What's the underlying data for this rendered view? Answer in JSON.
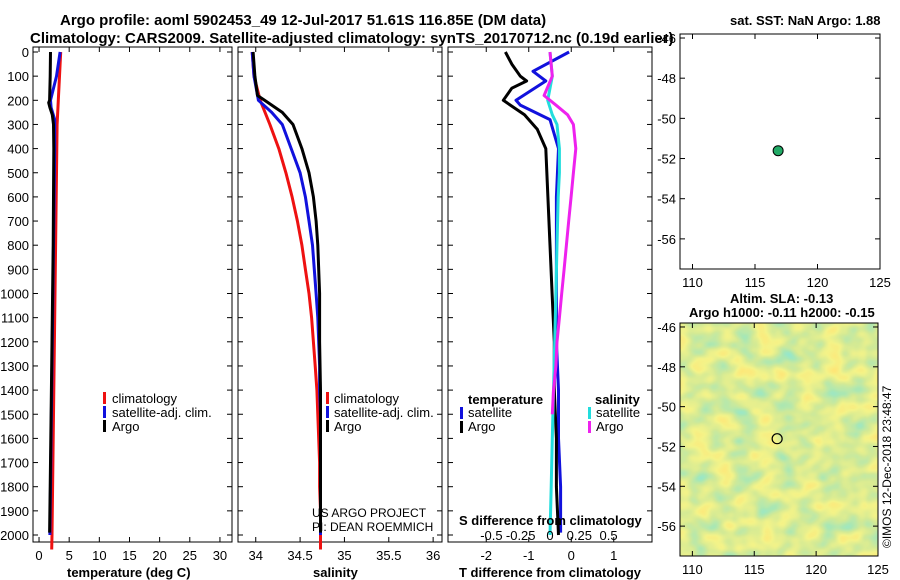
{
  "title": {
    "line1": "Argo profile: aoml 5902453_49 12-Jul-2017 51.61S 116.85E (DM data)",
    "line2": "Climatology: CARS2009. Satellite-adjusted climatology: synTS_20170712.nc (0.19d earlier)"
  },
  "colors": {
    "red": "#ee1111",
    "blue": "#1111dd",
    "black": "#000000",
    "cyan": "#22dddd",
    "magenta": "#ee22ee",
    "dot": "#22aa66"
  },
  "depth_ticks": [
    0,
    100,
    200,
    300,
    400,
    500,
    600,
    700,
    800,
    900,
    1000,
    1100,
    1200,
    1300,
    1400,
    1500,
    1600,
    1700,
    1800,
    1900,
    2000
  ],
  "chart_data": [
    {
      "id": "temperature",
      "type": "line",
      "xlabel": "temperature (deg C)",
      "ylabel": "",
      "xlim": [
        -1,
        32
      ],
      "ylim": [
        2060,
        0
      ],
      "xticks": [
        0,
        5,
        10,
        15,
        20,
        25,
        30
      ],
      "legend": [
        "climatology",
        "satellite-adj. clim.",
        "Argo"
      ],
      "series": [
        {
          "name": "climatology",
          "color": "red",
          "points": [
            [
              3.6,
              0
            ],
            [
              3.4,
              100
            ],
            [
              3.2,
              200
            ],
            [
              3.0,
              300
            ],
            [
              2.95,
              400
            ],
            [
              2.85,
              600
            ],
            [
              2.75,
              800
            ],
            [
              2.65,
              1000
            ],
            [
              2.55,
              1200
            ],
            [
              2.45,
              1400
            ],
            [
              2.35,
              1600
            ],
            [
              2.25,
              1800
            ],
            [
              2.15,
              2000
            ],
            [
              2.1,
              2060
            ]
          ]
        },
        {
          "name": "satellite-adj. clim.",
          "color": "blue",
          "points": [
            [
              3.5,
              0
            ],
            [
              2.9,
              100
            ],
            [
              1.9,
              200
            ],
            [
              2.0,
              230
            ],
            [
              2.6,
              280
            ],
            [
              2.6,
              400
            ],
            [
              2.5,
              600
            ],
            [
              2.4,
              800
            ],
            [
              2.3,
              1000
            ],
            [
              2.2,
              1200
            ],
            [
              2.1,
              1400
            ],
            [
              2.0,
              1600
            ],
            [
              1.9,
              1800
            ],
            [
              1.8,
              2000
            ]
          ]
        },
        {
          "name": "Argo",
          "color": "black",
          "points": [
            [
              1.9,
              0
            ],
            [
              1.85,
              100
            ],
            [
              1.75,
              200
            ],
            [
              1.6,
              210
            ],
            [
              1.8,
              230
            ],
            [
              2.2,
              260
            ],
            [
              2.4,
              300
            ],
            [
              2.45,
              400
            ],
            [
              2.4,
              600
            ],
            [
              2.35,
              800
            ],
            [
              2.25,
              1000
            ],
            [
              2.15,
              1200
            ],
            [
              2.05,
              1400
            ],
            [
              1.95,
              1600
            ],
            [
              1.85,
              1800
            ],
            [
              1.75,
              1990
            ]
          ]
        }
      ]
    },
    {
      "id": "salinity",
      "type": "line",
      "xlabel": "salinity",
      "ylabel": "",
      "xlim": [
        33.8,
        36.1
      ],
      "ylim": [
        2060,
        0
      ],
      "xticks": [
        34,
        34.5,
        35,
        35.5,
        36
      ],
      "xticklabels": [
        "34",
        "34.5",
        "35",
        "35.5",
        "36"
      ],
      "legend": [
        "climatology",
        "satellite-adj. clim.",
        "Argo"
      ],
      "annotations": [
        "US ARGO PROJECT",
        "PI: DEAN ROEMMICH"
      ],
      "series": [
        {
          "name": "climatology",
          "color": "red",
          "points": [
            [
              33.96,
              0
            ],
            [
              33.98,
              100
            ],
            [
              34.05,
              200
            ],
            [
              34.16,
              300
            ],
            [
              34.26,
              400
            ],
            [
              34.34,
              500
            ],
            [
              34.41,
              600
            ],
            [
              34.47,
              700
            ],
            [
              34.52,
              800
            ],
            [
              34.56,
              900
            ],
            [
              34.6,
              1000
            ],
            [
              34.63,
              1100
            ],
            [
              34.65,
              1200
            ],
            [
              34.67,
              1300
            ],
            [
              34.69,
              1400
            ],
            [
              34.7,
              1500
            ],
            [
              34.71,
              1600
            ],
            [
              34.72,
              1700
            ],
            [
              34.72,
              1800
            ],
            [
              34.73,
              1900
            ],
            [
              34.73,
              2000
            ],
            [
              34.73,
              2060
            ]
          ]
        },
        {
          "name": "satellite-adj. clim.",
          "color": "blue",
          "points": [
            [
              33.96,
              0
            ],
            [
              33.98,
              100
            ],
            [
              34.03,
              200
            ],
            [
              34.18,
              250
            ],
            [
              34.3,
              300
            ],
            [
              34.4,
              400
            ],
            [
              34.5,
              500
            ],
            [
              34.56,
              600
            ],
            [
              34.6,
              700
            ],
            [
              34.64,
              800
            ],
            [
              34.66,
              900
            ],
            [
              34.68,
              1000
            ],
            [
              34.7,
              1100
            ],
            [
              34.71,
              1200
            ],
            [
              34.72,
              1300
            ],
            [
              34.72,
              1400
            ],
            [
              34.73,
              1500
            ],
            [
              34.73,
              1600
            ],
            [
              34.73,
              1700
            ],
            [
              34.73,
              1800
            ],
            [
              34.73,
              1900
            ],
            [
              34.73,
              2000
            ]
          ]
        },
        {
          "name": "Argo",
          "color": "black",
          "points": [
            [
              33.97,
              0
            ],
            [
              33.99,
              100
            ],
            [
              34.02,
              180
            ],
            [
              34.1,
              200
            ],
            [
              34.3,
              250
            ],
            [
              34.42,
              300
            ],
            [
              34.52,
              400
            ],
            [
              34.6,
              500
            ],
            [
              34.65,
              600
            ],
            [
              34.68,
              700
            ],
            [
              34.7,
              800
            ],
            [
              34.71,
              900
            ],
            [
              34.72,
              1000
            ],
            [
              34.72,
              1200
            ],
            [
              34.73,
              1400
            ],
            [
              34.73,
              1600
            ],
            [
              34.73,
              1800
            ],
            [
              34.73,
              1990
            ]
          ]
        }
      ]
    },
    {
      "id": "differences",
      "type": "line",
      "xlabel": "T difference from climatology",
      "xlabel_top": "S difference from climatology",
      "xlim": [
        -2.9,
        1.9
      ],
      "ylim": [
        2060,
        0
      ],
      "xticks": [
        -2,
        -1,
        0,
        1
      ],
      "xticklabels": [
        "-2",
        "-1",
        "0",
        "1"
      ],
      "sticks": [
        -0.5,
        -0.25,
        0,
        0.25,
        0.5
      ],
      "sticklabels": [
        "-0.5",
        "-0.25",
        "0",
        "0.25",
        "0.5"
      ],
      "legend_temperature_title": "temperature",
      "legend_salinity_title": "salinity",
      "legend_temperature": [
        "satellite",
        "Argo"
      ],
      "legend_salinity": [
        "satellite",
        "Argo"
      ],
      "series": [
        {
          "name": "T satellite",
          "color": "blue",
          "points": [
            [
              -0.05,
              0
            ],
            [
              -0.9,
              80
            ],
            [
              -0.6,
              120
            ],
            [
              -1.3,
              200
            ],
            [
              -1.2,
              220
            ],
            [
              -0.5,
              280
            ],
            [
              -0.3,
              400
            ],
            [
              -0.35,
              600
            ],
            [
              -0.35,
              800
            ],
            [
              -0.35,
              1000
            ],
            [
              -0.35,
              1200
            ],
            [
              -0.3,
              1400
            ],
            [
              -0.3,
              1600
            ],
            [
              -0.25,
              1800
            ],
            [
              -0.25,
              1990
            ]
          ]
        },
        {
          "name": "T Argo",
          "color": "black",
          "points": [
            [
              -1.55,
              0
            ],
            [
              -1.4,
              50
            ],
            [
              -1.2,
              100
            ],
            [
              -1.05,
              120
            ],
            [
              -1.4,
              150
            ],
            [
              -1.6,
              200
            ],
            [
              -1.1,
              260
            ],
            [
              -0.8,
              320
            ],
            [
              -0.6,
              400
            ],
            [
              -0.55,
              600
            ],
            [
              -0.5,
              800
            ],
            [
              -0.45,
              1000
            ],
            [
              -0.4,
              1200
            ],
            [
              -0.4,
              1400
            ],
            [
              -0.35,
              1600
            ],
            [
              -0.35,
              1800
            ],
            [
              -0.3,
              2000
            ]
          ]
        },
        {
          "name": "S satellite",
          "color": "cyan",
          "points": [
            [
              0,
              0
            ],
            [
              0.02,
              100
            ],
            [
              -0.02,
              200
            ],
            [
              0.02,
              260
            ],
            [
              0.06,
              300
            ],
            [
              0.08,
              400
            ],
            [
              0.08,
              500
            ],
            [
              0.07,
              600
            ],
            [
              0.06,
              800
            ],
            [
              0.05,
              1000
            ],
            [
              0.04,
              1200
            ],
            [
              0.03,
              1400
            ],
            [
              0.02,
              1600
            ],
            [
              0.01,
              1800
            ],
            [
              0,
              2000
            ]
          ]
        },
        {
          "name": "S Argo",
          "color": "magenta",
          "points": [
            [
              0,
              0
            ],
            [
              0.02,
              100
            ],
            [
              -0.05,
              180
            ],
            [
              0.05,
              220
            ],
            [
              0.15,
              260
            ],
            [
              0.2,
              300
            ],
            [
              0.22,
              400
            ],
            [
              0.2,
              500
            ],
            [
              0.18,
              600
            ],
            [
              0.16,
              700
            ],
            [
              0.14,
              800
            ],
            [
              0.12,
              900
            ],
            [
              0.1,
              1000
            ],
            [
              0.08,
              1100
            ],
            [
              0.06,
              1200
            ],
            [
              0.05,
              1300
            ],
            [
              0.03,
              1400
            ],
            [
              0.02,
              1500
            ]
          ]
        }
      ]
    },
    {
      "id": "sst-map",
      "type": "scatter",
      "title": "sat. SST: NaN Argo: 1.88",
      "xlim": [
        109,
        125
      ],
      "ylim": [
        -57.5,
        -45.8
      ],
      "xticks": [
        110,
        115,
        120,
        125
      ],
      "yticks": [
        -46,
        -48,
        -50,
        -52,
        -54,
        -56
      ],
      "points": [
        [
          116.85,
          -51.61
        ]
      ]
    },
    {
      "id": "sla-map",
      "type": "heatmap",
      "title_line1": "Altim. SLA: -0.13",
      "title_line2": "Argo h1000: -0.11 h2000: -0.15",
      "xlim": [
        109,
        125
      ],
      "ylim": [
        -57.5,
        -45.8
      ],
      "xticks": [
        110,
        115,
        120,
        125
      ],
      "yticks": [
        -46,
        -48,
        -50,
        -52,
        -54,
        -56
      ],
      "points": [
        [
          116.85,
          -51.61
        ]
      ],
      "watermark": "©IMOS 12-Dec-2018 23:48:47"
    }
  ]
}
